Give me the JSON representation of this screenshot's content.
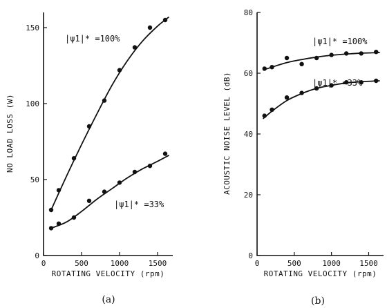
{
  "chart_data": [
    {
      "type": "scatter",
      "panel_label": "(a)",
      "xlabel": "ROTATING VELOCITY (rpm)",
      "ylabel": "NO LOAD LOSS (W)",
      "xlim": [
        0,
        1700
      ],
      "ylim": [
        0,
        160
      ],
      "xticks": [
        0,
        500,
        1000,
        1500
      ],
      "yticks": [
        0,
        50,
        100,
        150
      ],
      "series": [
        {
          "annotation": "|ψ1|* =100%",
          "x": [
            100,
            200,
            400,
            600,
            800,
            1000,
            1200,
            1400,
            1600
          ],
          "y": [
            30,
            43,
            64,
            85,
            102,
            122,
            137,
            150,
            155
          ],
          "fit": [
            [
              100,
              30
            ],
            [
              300,
              52
            ],
            [
              500,
              73
            ],
            [
              700,
              93
            ],
            [
              900,
              112
            ],
            [
              1100,
              128
            ],
            [
              1300,
              141
            ],
            [
              1500,
              151
            ],
            [
              1650,
              157
            ]
          ]
        },
        {
          "annotation": "|ψ1|* =33%",
          "x": [
            100,
            200,
            400,
            600,
            800,
            1000,
            1200,
            1400,
            1600
          ],
          "y": [
            18,
            21,
            25,
            36,
            42,
            48,
            55,
            59,
            67
          ],
          "fit": [
            [
              100,
              18
            ],
            [
              300,
              22
            ],
            [
              500,
              29
            ],
            [
              700,
              37
            ],
            [
              900,
              44
            ],
            [
              1100,
              51
            ],
            [
              1300,
              57
            ],
            [
              1500,
              62
            ],
            [
              1650,
              66
            ]
          ]
        }
      ]
    },
    {
      "type": "scatter",
      "panel_label": "(b)",
      "xlabel": "ROTATING VELOCITY (rpm)",
      "ylabel": "ACOUSTIC NOISE LEVEL (dB)",
      "xlim": [
        0,
        1700
      ],
      "ylim": [
        0,
        80
      ],
      "xticks": [
        0,
        500,
        1000,
        1500
      ],
      "yticks": [
        0,
        20,
        40,
        60,
        80
      ],
      "series": [
        {
          "annotation": "|ψ1|* =100%",
          "x": [
            100,
            200,
            400,
            600,
            800,
            1000,
            1200,
            1400,
            1600
          ],
          "y": [
            61.5,
            62,
            65,
            63,
            65,
            66,
            66.5,
            66.5,
            67
          ],
          "fit": [
            [
              80,
              61
            ],
            [
              200,
              62
            ],
            [
              400,
              63.5
            ],
            [
              600,
              64.5
            ],
            [
              800,
              65.3
            ],
            [
              1000,
              65.9
            ],
            [
              1200,
              66.3
            ],
            [
              1400,
              66.6
            ],
            [
              1650,
              66.8
            ]
          ]
        },
        {
          "annotation": "|ψ1|* =33%",
          "x": [
            100,
            200,
            400,
            600,
            800,
            1000,
            1200,
            1400,
            1600
          ],
          "y": [
            46,
            48,
            52,
            53.5,
            55,
            56,
            57,
            57,
            57.5
          ],
          "fit": [
            [
              80,
              45
            ],
            [
              200,
              47.5
            ],
            [
              400,
              51
            ],
            [
              600,
              53.3
            ],
            [
              800,
              55
            ],
            [
              1000,
              56
            ],
            [
              1200,
              56.8
            ],
            [
              1400,
              57.2
            ],
            [
              1650,
              57.5
            ]
          ]
        }
      ]
    }
  ]
}
